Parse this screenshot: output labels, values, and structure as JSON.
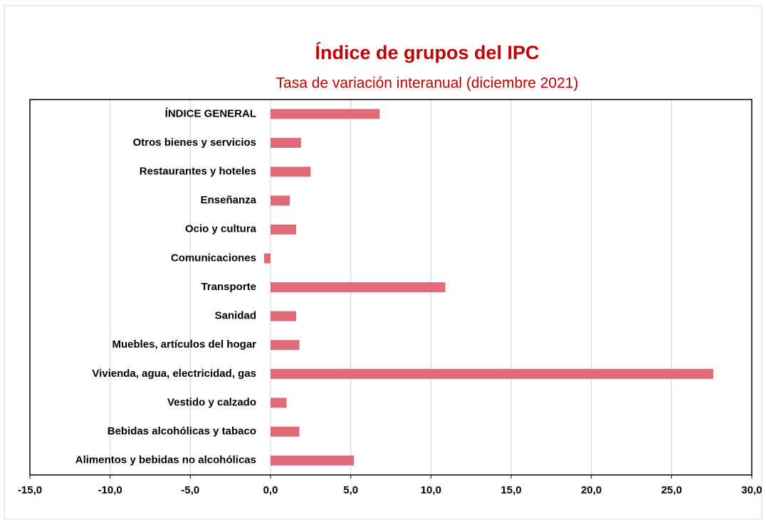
{
  "chart_data": {
    "type": "bar",
    "orientation": "horizontal",
    "title": "Índice de grupos del IPC",
    "subtitle": "Tasa de variación interanual (diciembre 2021)",
    "categories": [
      "ÍNDICE GENERAL",
      "Otros bienes y servicios",
      "Restaurantes y hoteles",
      "Enseñanza",
      "Ocio y cultura",
      "Comunicaciones",
      "Transporte",
      "Sanidad",
      "Muebles, artículos del hogar",
      "Vivienda, agua, electricidad, gas",
      "Vestido y calzado",
      "Bebidas alcohólicas y tabaco",
      "Alimentos y bebidas no alcohólicas"
    ],
    "values": [
      6.8,
      1.9,
      2.5,
      1.2,
      1.6,
      -0.4,
      10.9,
      1.6,
      1.8,
      27.6,
      1.0,
      1.8,
      5.2
    ],
    "color": "#e06a78",
    "xlim": [
      -15,
      30
    ],
    "xticks": [
      {
        "value": -15,
        "label": "-15,0"
      },
      {
        "value": -10,
        "label": "-10,0"
      },
      {
        "value": -5,
        "label": "-5,0"
      },
      {
        "value": 0,
        "label": "0,0"
      },
      {
        "value": 5,
        "label": "5,0"
      },
      {
        "value": 10,
        "label": "10,0"
      },
      {
        "value": 15,
        "label": "15,0"
      },
      {
        "value": 20,
        "label": "20,0"
      },
      {
        "value": 25,
        "label": "25,0"
      },
      {
        "value": 30,
        "label": "30,0"
      }
    ],
    "grid": true
  }
}
